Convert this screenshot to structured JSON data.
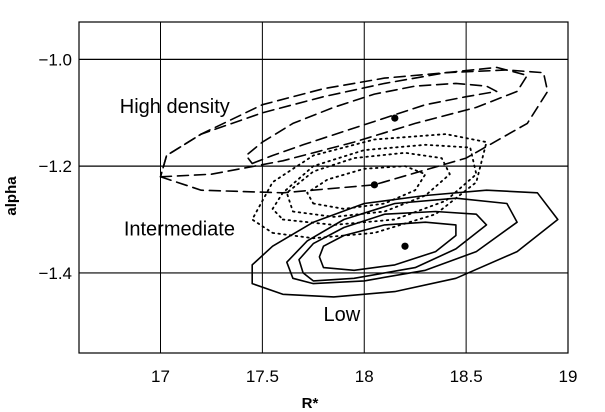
{
  "chart_data": {
    "type": "contour",
    "xlabel": "R*",
    "ylabel": "alpha",
    "xlim": [
      16.6,
      19.0
    ],
    "ylim": [
      -1.55,
      -0.93
    ],
    "xticks": [
      17,
      17.5,
      18,
      18.5,
      19
    ],
    "xtick_labels": [
      "17",
      "17.5",
      "18",
      "18.5",
      "19"
    ],
    "yticks": [
      -1.0,
      -1.2,
      -1.4
    ],
    "ytick_labels": [
      "−1.0",
      "−1.2",
      "−1.4"
    ],
    "grid": true,
    "series": [
      {
        "name": "High density",
        "line_style": "dashed",
        "best_fit": {
          "x": 18.15,
          "y": -1.11
        },
        "contours": [
          [
            [
              17.45,
              -1.195
            ],
            [
              17.55,
              -1.18
            ],
            [
              17.7,
              -1.16
            ],
            [
              17.9,
              -1.135
            ],
            [
              18.1,
              -1.11
            ],
            [
              18.3,
              -1.085
            ],
            [
              18.5,
              -1.07
            ],
            [
              18.65,
              -1.06
            ],
            [
              18.6,
              -1.05
            ],
            [
              18.45,
              -1.045
            ],
            [
              18.25,
              -1.05
            ],
            [
              18.05,
              -1.065
            ],
            [
              17.85,
              -1.09
            ],
            [
              17.65,
              -1.12
            ],
            [
              17.5,
              -1.155
            ],
            [
              17.42,
              -1.18
            ],
            [
              17.45,
              -1.195
            ]
          ],
          [
            [
              17.0,
              -1.22
            ],
            [
              17.25,
              -1.215
            ],
            [
              17.6,
              -1.19
            ],
            [
              17.95,
              -1.155
            ],
            [
              18.25,
              -1.12
            ],
            [
              18.55,
              -1.09
            ],
            [
              18.75,
              -1.06
            ],
            [
              18.8,
              -1.03
            ],
            [
              18.65,
              -1.015
            ],
            [
              18.4,
              -1.025
            ],
            [
              18.1,
              -1.045
            ],
            [
              17.8,
              -1.07
            ],
            [
              17.5,
              -1.1
            ],
            [
              17.2,
              -1.14
            ],
            [
              17.03,
              -1.18
            ],
            [
              17.0,
              -1.22
            ]
          ],
          [
            [
              17.0,
              -1.22
            ],
            [
              17.2,
              -1.245
            ],
            [
              17.6,
              -1.25
            ],
            [
              18.05,
              -1.235
            ],
            [
              18.5,
              -1.185
            ],
            [
              18.8,
              -1.12
            ],
            [
              18.9,
              -1.06
            ],
            [
              18.88,
              -1.025
            ],
            [
              18.7,
              -1.02
            ],
            [
              18.4,
              -1.025
            ],
            [
              18.1,
              -1.035
            ],
            [
              17.8,
              -1.055
            ],
            [
              17.5,
              -1.085
            ],
            [
              17.2,
              -1.14
            ],
            [
              17.03,
              -1.18
            ],
            [
              17.0,
              -1.22
            ]
          ]
        ]
      },
      {
        "name": "Intermediate",
        "line_style": "dotted",
        "best_fit": {
          "x": 18.05,
          "y": -1.235
        },
        "contours": [
          [
            [
              17.75,
              -1.27
            ],
            [
              17.9,
              -1.28
            ],
            [
              18.1,
              -1.27
            ],
            [
              18.25,
              -1.245
            ],
            [
              18.3,
              -1.215
            ],
            [
              18.2,
              -1.2
            ],
            [
              18.0,
              -1.205
            ],
            [
              17.82,
              -1.225
            ],
            [
              17.72,
              -1.25
            ],
            [
              17.75,
              -1.27
            ]
          ],
          [
            [
              17.65,
              -1.285
            ],
            [
              17.85,
              -1.295
            ],
            [
              18.1,
              -1.285
            ],
            [
              18.3,
              -1.255
            ],
            [
              18.42,
              -1.215
            ],
            [
              18.38,
              -1.185
            ],
            [
              18.2,
              -1.175
            ],
            [
              17.95,
              -1.185
            ],
            [
              17.75,
              -1.21
            ],
            [
              17.62,
              -1.25
            ],
            [
              17.65,
              -1.285
            ]
          ],
          [
            [
              17.6,
              -1.3
            ],
            [
              17.85,
              -1.31
            ],
            [
              18.15,
              -1.3
            ],
            [
              18.4,
              -1.265
            ],
            [
              18.55,
              -1.215
            ],
            [
              18.52,
              -1.165
            ],
            [
              18.3,
              -1.16
            ],
            [
              18.0,
              -1.17
            ],
            [
              17.75,
              -1.2
            ],
            [
              17.6,
              -1.25
            ],
            [
              17.55,
              -1.28
            ],
            [
              17.6,
              -1.3
            ]
          ],
          [
            [
              17.55,
              -1.325
            ],
            [
              17.75,
              -1.335
            ],
            [
              18.05,
              -1.325
            ],
            [
              18.35,
              -1.29
            ],
            [
              18.55,
              -1.23
            ],
            [
              18.6,
              -1.155
            ],
            [
              18.4,
              -1.14
            ],
            [
              18.05,
              -1.15
            ],
            [
              17.75,
              -1.18
            ],
            [
              17.55,
              -1.23
            ],
            [
              17.45,
              -1.3
            ],
            [
              17.55,
              -1.325
            ]
          ]
        ]
      },
      {
        "name": "Low",
        "line_style": "solid",
        "best_fit": {
          "x": 18.2,
          "y": -1.35
        },
        "contours": [
          [
            [
              17.78,
              -1.37
            ],
            [
              17.8,
              -1.39
            ],
            [
              17.95,
              -1.395
            ],
            [
              18.15,
              -1.385
            ],
            [
              18.35,
              -1.36
            ],
            [
              18.45,
              -1.33
            ],
            [
              18.45,
              -1.31
            ],
            [
              18.3,
              -1.305
            ],
            [
              18.1,
              -1.31
            ],
            [
              17.9,
              -1.33
            ],
            [
              17.8,
              -1.35
            ],
            [
              17.78,
              -1.37
            ]
          ],
          [
            [
              17.7,
              -1.4
            ],
            [
              17.75,
              -1.415
            ],
            [
              17.95,
              -1.41
            ],
            [
              18.25,
              -1.39
            ],
            [
              18.45,
              -1.355
            ],
            [
              18.6,
              -1.31
            ],
            [
              18.55,
              -1.29
            ],
            [
              18.35,
              -1.285
            ],
            [
              18.1,
              -1.29
            ],
            [
              17.9,
              -1.315
            ],
            [
              17.75,
              -1.345
            ],
            [
              17.68,
              -1.375
            ],
            [
              17.7,
              -1.4
            ]
          ],
          [
            [
              17.65,
              -1.41
            ],
            [
              17.75,
              -1.42
            ],
            [
              18.0,
              -1.415
            ],
            [
              18.3,
              -1.395
            ],
            [
              18.55,
              -1.36
            ],
            [
              18.75,
              -1.305
            ],
            [
              18.7,
              -1.27
            ],
            [
              18.45,
              -1.26
            ],
            [
              18.15,
              -1.27
            ],
            [
              17.9,
              -1.3
            ],
            [
              17.72,
              -1.34
            ],
            [
              17.62,
              -1.38
            ],
            [
              17.65,
              -1.41
            ]
          ],
          [
            [
              17.45,
              -1.42
            ],
            [
              17.6,
              -1.44
            ],
            [
              17.85,
              -1.445
            ],
            [
              18.15,
              -1.435
            ],
            [
              18.45,
              -1.41
            ],
            [
              18.75,
              -1.36
            ],
            [
              18.95,
              -1.3
            ],
            [
              18.85,
              -1.25
            ],
            [
              18.6,
              -1.245
            ],
            [
              18.3,
              -1.255
            ],
            [
              18.0,
              -1.27
            ],
            [
              17.75,
              -1.305
            ],
            [
              17.55,
              -1.35
            ],
            [
              17.45,
              -1.385
            ],
            [
              17.45,
              -1.42
            ]
          ]
        ]
      }
    ],
    "annotations": [
      {
        "text": "High density",
        "x": 16.8,
        "y": -1.1
      },
      {
        "text": "Intermediate",
        "x": 16.82,
        "y": -1.33
      },
      {
        "text": "Low",
        "x": 17.8,
        "y": -1.49
      }
    ]
  }
}
